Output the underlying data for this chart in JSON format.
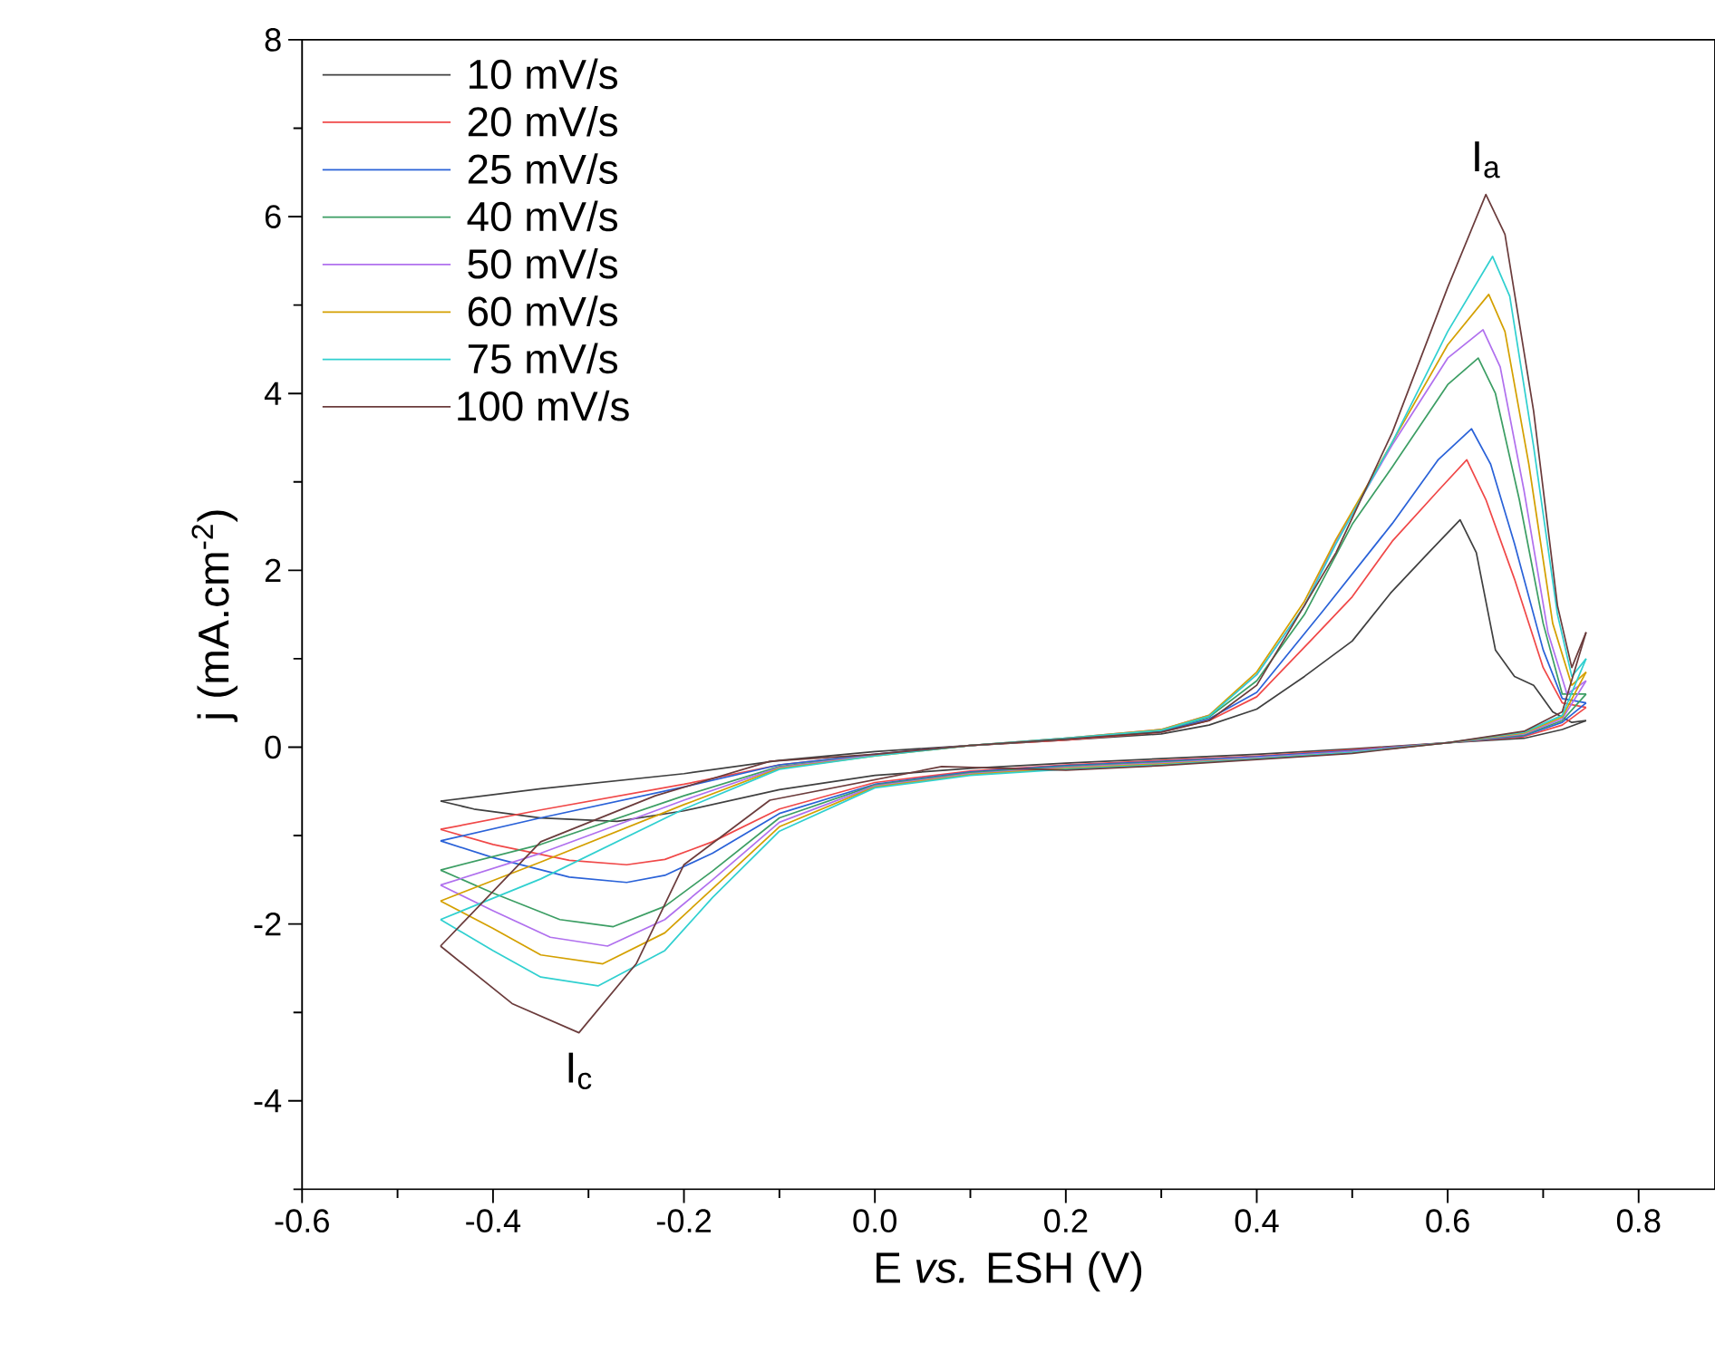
{
  "chart_data": {
    "type": "line",
    "xlabel": "E *vs.* ESH (V)",
    "ylabel": "j (mA.cm$^{-2}$)",
    "xlim": [
      -0.6,
      0.88
    ],
    "ylim": [
      -5,
      8
    ],
    "xticks": [
      {
        "value": -0.6,
        "label": "-0.6"
      },
      {
        "value": -0.5,
        "label": null
      },
      {
        "value": -0.4,
        "label": "-0.4"
      },
      {
        "value": -0.3,
        "label": null
      },
      {
        "value": -0.2,
        "label": "-0.2"
      },
      {
        "value": -0.1,
        "label": null
      },
      {
        "value": 0,
        "label": "0.0"
      },
      {
        "value": 0.1,
        "label": null
      },
      {
        "value": 0.2,
        "label": "0.2"
      },
      {
        "value": 0.3,
        "label": null
      },
      {
        "value": 0.4,
        "label": "0.4"
      },
      {
        "value": 0.5,
        "label": null
      },
      {
        "value": 0.6,
        "label": "0.6"
      },
      {
        "value": 0.7,
        "label": null
      },
      {
        "value": 0.8,
        "label": "0.8"
      }
    ],
    "yticks": [
      {
        "value": -5,
        "label": null
      },
      -4,
      {
        "value": -3,
        "label": null
      },
      -2,
      {
        "value": -1,
        "label": null
      },
      0,
      {
        "value": 1,
        "label": null
      },
      2,
      {
        "value": 3,
        "label": null
      },
      4,
      {
        "value": 5,
        "label": null
      },
      6,
      {
        "value": 7,
        "label": null
      },
      8
    ],
    "legend": "top left",
    "annotations": [
      "I$_{a}$",
      "I$_{c}$"
    ],
    "series": [
      {
        "name": "10 mV/s",
        "color": "#404040",
        "x": [
          -0.455,
          -0.35,
          -0.2,
          -0.1,
          0.0,
          0.1,
          0.2,
          0.3,
          0.35,
          0.4,
          0.45,
          0.5,
          0.54,
          0.58,
          0.613,
          0.63,
          0.65,
          0.67,
          0.69,
          0.71,
          0.73,
          0.745
        ],
        "values": [
          -0.61,
          -0.47,
          -0.3,
          -0.15,
          -0.05,
          0.02,
          0.08,
          0.15,
          0.25,
          0.43,
          0.8,
          1.2,
          1.74,
          2.2,
          2.57,
          2.2,
          1.1,
          0.8,
          0.7,
          0.4,
          0.28,
          0.3
        ]
      },
      {
        "color": "#404040",
        "x": [
          -0.455,
          -0.42,
          -0.35,
          -0.27,
          -0.2,
          -0.1,
          0.0,
          0.1,
          0.2,
          0.3,
          0.4,
          0.5,
          0.6,
          0.68,
          0.72,
          0.745
        ],
        "values": [
          -0.61,
          -0.7,
          -0.8,
          -0.84,
          -0.72,
          -0.48,
          -0.32,
          -0.24,
          -0.18,
          -0.13,
          -0.08,
          -0.02,
          0.05,
          0.1,
          0.2,
          0.3
        ]
      },
      {
        "name": "20 mV/s",
        "color": "#f04848",
        "x": [
          -0.455,
          -0.35,
          -0.2,
          -0.1,
          0.0,
          0.1,
          0.2,
          0.3,
          0.35,
          0.4,
          0.457,
          0.5,
          0.542,
          0.59,
          0.62,
          0.64,
          0.67,
          0.7,
          0.72,
          0.745
        ],
        "values": [
          -0.93,
          -0.71,
          -0.42,
          -0.2,
          -0.08,
          0.02,
          0.08,
          0.17,
          0.3,
          0.57,
          1.21,
          1.7,
          2.33,
          2.9,
          3.25,
          2.8,
          1.9,
          0.9,
          0.5,
          0.45
        ]
      },
      {
        "color": "#f04848",
        "x": [
          -0.455,
          -0.4,
          -0.32,
          -0.26,
          -0.22,
          -0.17,
          -0.1,
          0.0,
          0.1,
          0.2,
          0.3,
          0.4,
          0.5,
          0.6,
          0.68,
          0.72,
          0.745
        ],
        "values": [
          -0.93,
          -1.1,
          -1.28,
          -1.33,
          -1.27,
          -1.07,
          -0.7,
          -0.4,
          -0.27,
          -0.2,
          -0.15,
          -0.1,
          -0.03,
          0.05,
          0.12,
          0.25,
          0.45
        ]
      },
      {
        "name": "25 mV/s",
        "color": "#2a62d8",
        "x": [
          -0.455,
          -0.35,
          -0.2,
          -0.1,
          0.0,
          0.1,
          0.2,
          0.3,
          0.35,
          0.4,
          0.47,
          0.542,
          0.59,
          0.625,
          0.645,
          0.67,
          0.7,
          0.72,
          0.745
        ],
        "values": [
          -1.06,
          -0.8,
          -0.45,
          -0.2,
          -0.08,
          0.02,
          0.09,
          0.18,
          0.32,
          0.62,
          1.55,
          2.53,
          3.25,
          3.6,
          3.2,
          2.3,
          1.1,
          0.55,
          0.5
        ]
      },
      {
        "color": "#2a62d8",
        "x": [
          -0.455,
          -0.4,
          -0.32,
          -0.26,
          -0.22,
          -0.17,
          -0.1,
          0.0,
          0.1,
          0.2,
          0.3,
          0.4,
          0.5,
          0.6,
          0.68,
          0.72,
          0.745
        ],
        "values": [
          -1.06,
          -1.25,
          -1.47,
          -1.53,
          -1.45,
          -1.2,
          -0.75,
          -0.42,
          -0.28,
          -0.21,
          -0.16,
          -0.11,
          -0.04,
          0.05,
          0.13,
          0.28,
          0.5
        ]
      },
      {
        "name": "40 mV/s",
        "color": "#3c9e64",
        "x": [
          -0.455,
          -0.35,
          -0.2,
          -0.1,
          0.0,
          0.1,
          0.2,
          0.3,
          0.35,
          0.4,
          0.45,
          0.5,
          0.542,
          0.6,
          0.632,
          0.65,
          0.675,
          0.7,
          0.72,
          0.745
        ],
        "values": [
          -1.39,
          -1.1,
          -0.55,
          -0.22,
          -0.09,
          0.02,
          0.09,
          0.19,
          0.34,
          0.75,
          1.5,
          2.52,
          3.17,
          4.1,
          4.4,
          4.0,
          2.8,
          1.4,
          0.6,
          0.6
        ]
      },
      {
        "color": "#3c9e64",
        "x": [
          -0.455,
          -0.4,
          -0.33,
          -0.274,
          -0.22,
          -0.17,
          -0.1,
          0.0,
          0.1,
          0.2,
          0.3,
          0.4,
          0.5,
          0.6,
          0.68,
          0.72,
          0.745
        ],
        "values": [
          -1.39,
          -1.65,
          -1.95,
          -2.03,
          -1.8,
          -1.4,
          -0.8,
          -0.43,
          -0.29,
          -0.22,
          -0.17,
          -0.12,
          -0.05,
          0.05,
          0.14,
          0.3,
          0.6
        ]
      },
      {
        "name": "50 mV/s",
        "color": "#b070ee",
        "x": [
          -0.455,
          -0.35,
          -0.2,
          -0.1,
          0.0,
          0.1,
          0.2,
          0.3,
          0.35,
          0.4,
          0.45,
          0.483,
          0.542,
          0.6,
          0.637,
          0.655,
          0.68,
          0.705,
          0.725,
          0.745
        ],
        "values": [
          -1.56,
          -1.2,
          -0.6,
          -0.23,
          -0.09,
          0.02,
          0.1,
          0.2,
          0.36,
          0.82,
          1.6,
          2.33,
          3.42,
          4.4,
          4.72,
          4.3,
          2.9,
          1.3,
          0.6,
          0.75
        ]
      },
      {
        "color": "#b070ee",
        "x": [
          -0.455,
          -0.4,
          -0.34,
          -0.28,
          -0.22,
          -0.17,
          -0.1,
          0.0,
          0.1,
          0.2,
          0.3,
          0.4,
          0.5,
          0.6,
          0.68,
          0.72,
          0.745
        ],
        "values": [
          -1.56,
          -1.85,
          -2.15,
          -2.25,
          -1.95,
          -1.5,
          -0.85,
          -0.44,
          -0.3,
          -0.23,
          -0.18,
          -0.12,
          -0.05,
          0.05,
          0.15,
          0.32,
          0.75
        ]
      },
      {
        "name": "60 mV/s",
        "color": "#d4a000",
        "x": [
          -0.455,
          -0.35,
          -0.2,
          -0.1,
          0.0,
          0.1,
          0.2,
          0.3,
          0.35,
          0.4,
          0.45,
          0.483,
          0.542,
          0.6,
          0.643,
          0.66,
          0.685,
          0.71,
          0.73,
          0.745
        ],
        "values": [
          -1.74,
          -1.3,
          -0.65,
          -0.24,
          -0.1,
          0.02,
          0.1,
          0.2,
          0.36,
          0.85,
          1.65,
          2.35,
          3.45,
          4.55,
          5.12,
          4.7,
          3.2,
          1.4,
          0.7,
          0.85
        ]
      },
      {
        "color": "#d4a000",
        "x": [
          -0.455,
          -0.4,
          -0.35,
          -0.285,
          -0.22,
          -0.17,
          -0.1,
          0.0,
          0.1,
          0.2,
          0.3,
          0.4,
          0.5,
          0.6,
          0.68,
          0.72,
          0.745
        ],
        "values": [
          -1.74,
          -2.05,
          -2.35,
          -2.45,
          -2.1,
          -1.6,
          -0.9,
          -0.45,
          -0.31,
          -0.24,
          -0.19,
          -0.13,
          -0.06,
          0.05,
          0.16,
          0.34,
          0.85
        ]
      },
      {
        "name": "75 mV/s",
        "color": "#30d0d0",
        "x": [
          -0.455,
          -0.35,
          -0.2,
          -0.1,
          0.0,
          0.1,
          0.2,
          0.3,
          0.35,
          0.4,
          0.45,
          0.483,
          0.542,
          0.6,
          0.647,
          0.665,
          0.69,
          0.715,
          0.73,
          0.745
        ],
        "values": [
          -1.95,
          -1.49,
          -0.7,
          -0.25,
          -0.1,
          0.02,
          0.1,
          0.19,
          0.35,
          0.82,
          1.6,
          2.3,
          3.45,
          4.7,
          5.55,
          5.1,
          3.4,
          1.5,
          0.8,
          1.0
        ]
      },
      {
        "color": "#30d0d0",
        "x": [
          -0.455,
          -0.4,
          -0.35,
          -0.29,
          -0.22,
          -0.17,
          -0.1,
          0.0,
          0.1,
          0.2,
          0.3,
          0.4,
          0.5,
          0.6,
          0.68,
          0.72,
          0.745
        ],
        "values": [
          -1.95,
          -2.3,
          -2.6,
          -2.7,
          -2.3,
          -1.7,
          -0.95,
          -0.46,
          -0.32,
          -0.25,
          -0.2,
          -0.13,
          -0.06,
          0.05,
          0.17,
          0.36,
          1.0
        ]
      },
      {
        "name": "100 mV/s",
        "color": "#6b3c3c",
        "x": [
          -0.455,
          -0.35,
          -0.23,
          -0.11,
          0.0,
          0.1,
          0.2,
          0.3,
          0.35,
          0.4,
          0.483,
          0.542,
          0.6,
          0.64,
          0.66,
          0.69,
          0.715,
          0.73,
          0.745
        ],
        "values": [
          -2.25,
          -1.07,
          -0.55,
          -0.16,
          -0.08,
          0.02,
          0.09,
          0.17,
          0.3,
          0.7,
          2.2,
          3.56,
          5.2,
          6.25,
          5.8,
          3.8,
          1.6,
          0.9,
          1.3
        ]
      },
      {
        "color": "#6b3c3c",
        "x": [
          -0.455,
          -0.38,
          -0.31,
          -0.25,
          -0.2,
          -0.11,
          0.07,
          0.2,
          0.3,
          0.4,
          0.5,
          0.6,
          0.68,
          0.72,
          0.745
        ],
        "values": [
          -2.25,
          -2.9,
          -3.23,
          -2.45,
          -1.33,
          -0.6,
          -0.22,
          -0.26,
          -0.21,
          -0.14,
          -0.07,
          0.05,
          0.18,
          0.4,
          1.3
        ]
      }
    ]
  }
}
